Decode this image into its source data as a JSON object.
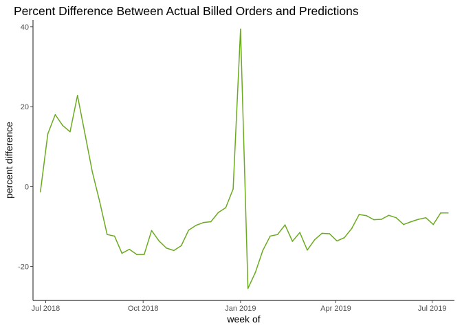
{
  "chart_data": {
    "type": "line",
    "title": "Percent Difference Between Actual Billed Orders and Predictions",
    "xlabel": "week of",
    "ylabel": "percent difference",
    "x_type": "date",
    "xlim": [
      "2018-06-19",
      "2019-07-22"
    ],
    "ylim": [
      -28.5,
      41.7
    ],
    "x_ticks": [
      {
        "value": "2018-07-01",
        "label": "Jul 2018"
      },
      {
        "value": "2018-10-01",
        "label": "Oct 2018"
      },
      {
        "value": "2019-01-01",
        "label": "Jan 2019"
      },
      {
        "value": "2019-04-01",
        "label": "Apr 2019"
      },
      {
        "value": "2019-07-01",
        "label": "Jul 2019"
      }
    ],
    "y_ticks": [
      {
        "value": -20,
        "label": "-20"
      },
      {
        "value": 0,
        "label": "0"
      },
      {
        "value": 20,
        "label": "20"
      },
      {
        "value": 40,
        "label": "40"
      }
    ],
    "grid": false,
    "legend": "none",
    "line_color": "#6aaa1f",
    "series": [
      {
        "x": [
          "2018-06-26",
          "2018-07-03",
          "2018-07-10",
          "2018-07-17",
          "2018-07-24",
          "2018-07-31",
          "2018-08-07",
          "2018-08-14",
          "2018-08-21",
          "2018-08-28",
          "2018-09-04",
          "2018-09-11",
          "2018-09-18",
          "2018-09-25",
          "2018-10-02",
          "2018-10-09",
          "2018-10-16",
          "2018-10-23",
          "2018-10-30",
          "2018-11-06",
          "2018-11-13",
          "2018-11-20",
          "2018-11-27",
          "2018-12-04",
          "2018-12-11",
          "2018-12-18",
          "2018-12-25",
          "2019-01-01",
          "2019-01-08",
          "2019-01-15",
          "2019-01-22",
          "2019-01-29",
          "2019-02-05",
          "2019-02-12",
          "2019-02-19",
          "2019-02-26",
          "2019-03-05",
          "2019-03-12",
          "2019-03-19",
          "2019-03-26",
          "2019-04-02",
          "2019-04-09",
          "2019-04-16",
          "2019-04-23",
          "2019-04-30",
          "2019-05-07",
          "2019-05-14",
          "2019-05-21",
          "2019-05-28",
          "2019-06-04",
          "2019-06-11",
          "2019-06-18",
          "2019-06-25",
          "2019-07-02",
          "2019-07-09",
          "2019-07-16"
        ],
        "y": [
          -1.3,
          13.2,
          18.0,
          15.3,
          13.7,
          22.8,
          13.3,
          3.7,
          -3.8,
          -12.0,
          -12.4,
          -16.7,
          -15.7,
          -17.0,
          -17.0,
          -11.0,
          -13.6,
          -15.4,
          -16.0,
          -14.8,
          -10.9,
          -9.7,
          -9.0,
          -8.8,
          -6.5,
          -5.3,
          -0.6,
          39.4,
          -25.5,
          -21.5,
          -16.0,
          -12.4,
          -12.0,
          -9.6,
          -13.7,
          -11.5,
          -15.9,
          -13.3,
          -11.7,
          -11.8,
          -13.6,
          -12.8,
          -10.5,
          -7.0,
          -7.3,
          -8.3,
          -8.2,
          -7.2,
          -7.8,
          -9.5,
          -8.8,
          -8.2,
          -7.8,
          -9.5,
          -6.6,
          -6.6
        ]
      }
    ]
  }
}
